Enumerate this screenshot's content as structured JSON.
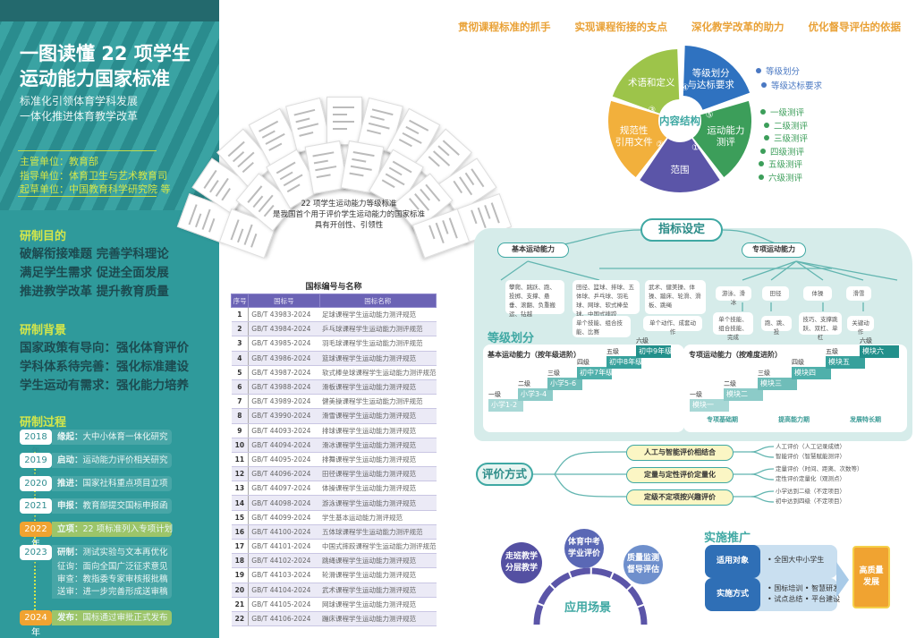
{
  "left_panel": {
    "title_lines": [
      "一图读懂 22 项学生",
      "运动能力国家标准"
    ],
    "subtitle_lines": [
      "标准化引领体育学科发展",
      "一体化推进体育教学改革"
    ],
    "organizations": [
      "主管单位：教育部",
      "指导单位：体育卫生与艺术教育司",
      "起草单位：中国教育科学研究院 等"
    ],
    "purpose": {
      "heading": "研制目的",
      "lines": [
        "破解衔接难题  完善学科理论",
        "满足学生需求  促进全面发展",
        "推进教学改革  提升教育质量"
      ]
    },
    "background": {
      "heading": "研制背景",
      "lines": [
        "国家政策有导向：强化体育评价",
        "学科体系待完善：强化标准建设",
        "学生运动有需求：强化能力培养"
      ]
    },
    "process": {
      "heading": "研制过程",
      "timeline": [
        {
          "year": "2018 年",
          "label": "缘起：",
          "text": "大中小体育一体化研究",
          "highlight": false
        },
        {
          "year": "2019 年",
          "label": "启动：",
          "text": "运动能力评价相关研究",
          "highlight": false
        },
        {
          "year": "2020 年",
          "label": "推进：",
          "text": "国家社科重点项目立项",
          "highlight": false
        },
        {
          "year": "2021 年",
          "label": "申报：",
          "text": "教育部提交国标申报函",
          "highlight": false
        },
        {
          "year": "2022 年",
          "label": "立项：",
          "text": "22 项标准列入专项计划",
          "highlight": true
        },
        {
          "year": "2023 年",
          "label": "研制：",
          "text": "测试实验与文本再优化",
          "highlight": false,
          "more": [
            "征询：面向全国广泛征求意见",
            "审查：教指委专家审核报批稿",
            "送审：进一步完善形成送审稿"
          ]
        },
        {
          "year": "2024 年",
          "label": "发布：",
          "text": "国标通过审批正式发布",
          "highlight": true
        }
      ]
    }
  },
  "middle": {
    "caption_lines": [
      "22 项学生运动能力等级标准",
      "是我国首个用于评价学生运动能力的国家标准",
      "具有开创性、引领性"
    ],
    "table": {
      "title": "国标编号与名称",
      "columns": [
        "序号",
        "国标号",
        "国标名称"
      ],
      "rows": [
        [
          "1",
          "GB/T 43983-2024",
          "足球课程学生运动能力测评规范"
        ],
        [
          "2",
          "GB/T 43984-2024",
          "乒乓球课程学生运动能力测评规范"
        ],
        [
          "3",
          "GB/T 43985-2024",
          "羽毛球课程学生运动能力测评规范"
        ],
        [
          "4",
          "GB/T 43986-2024",
          "篮球课程学生运动能力测评规范"
        ],
        [
          "5",
          "GB/T 43987-2024",
          "软式棒垒球课程学生运动能力测评规范"
        ],
        [
          "6",
          "GB/T 43988-2024",
          "滑板课程学生运动能力测评规范"
        ],
        [
          "7",
          "GB/T 43989-2024",
          "健美操课程学生运动能力测评规范"
        ],
        [
          "8",
          "GB/T 43990-2024",
          "滑雪课程学生运动能力测评规范"
        ],
        [
          "9",
          "GB/T 44093-2024",
          "排球课程学生运动能力测评规范"
        ],
        [
          "10",
          "GB/T 44094-2024",
          "滑冰课程学生运动能力测评规范"
        ],
        [
          "11",
          "GB/T 44095-2024",
          "排舞课程学生运动能力测评规范"
        ],
        [
          "12",
          "GB/T 44096-2024",
          "田径课程学生运动能力测评规范"
        ],
        [
          "13",
          "GB/T 44097-2024",
          "体操课程学生运动能力测评规范"
        ],
        [
          "14",
          "GB/T 44098-2024",
          "游泳课程学生运动能力测评规范"
        ],
        [
          "15",
          "GB/T 44099-2024",
          "学生基本运动能力测评规范"
        ],
        [
          "16",
          "GB/T 44100-2024",
          "五体球课程学生运动能力测评规范"
        ],
        [
          "17",
          "GB/T 44101-2024",
          "中国式摔跤课程学生运动能力测评规范"
        ],
        [
          "18",
          "GB/T 44102-2024",
          "跳绳课程学生运动能力测评规范"
        ],
        [
          "19",
          "GB/T 44103-2024",
          "轮滑课程学生运动能力测评规范"
        ],
        [
          "20",
          "GB/T 44104-2024",
          "武术课程学生运动能力测评规范"
        ],
        [
          "21",
          "GB/T 44105-2024",
          "网球课程学生运动能力测评规范"
        ],
        [
          "22",
          "GB/T 44106-2024",
          "蹦床课程学生运动能力测评规范"
        ]
      ]
    }
  },
  "purposes": [
    "贯彻课程标准的抓手",
    "实现课程衔接的支点",
    "深化教学改革的助力",
    "优化督导评估的依据"
  ],
  "content_structure": {
    "center": "内容结构",
    "segments": [
      {
        "num": "①",
        "label": "范围",
        "color": "#5b55a8"
      },
      {
        "num": "②",
        "label": "规范性\n引用文件",
        "color": "#f2b03c"
      },
      {
        "num": "③",
        "label": "术语和定义",
        "color": "#9dc44a"
      },
      {
        "num": "④",
        "label": "等级划分\n与达标要求",
        "color": "#2f72c0"
      },
      {
        "num": "⑤",
        "label": "运动能力\n测评",
        "color": "#3c9e5a"
      }
    ],
    "grading_items": [
      "等级划分",
      "等级达标要求"
    ],
    "test_items": [
      "一级测评",
      "二级测评",
      "三级测评",
      "四级测评",
      "五级测评",
      "六级测评"
    ]
  },
  "indicators": {
    "title": "指标设定",
    "basic": {
      "label": "基本运动能力",
      "boxes": [
        "攀爬、跳跃、跑、投掷、支撑、悬垂、滚翻、负重搬运、钻越",
        "田径、篮球、排球、五体球、乒乓球、羽毛球、网球、软式棒垒球、中国式摔跤",
        "武术、健美操、体操、蹦床、轮滑、滑板、跳绳"
      ],
      "sub_boxes": [
        "单个技能、组合技能、比赛",
        "单个动作、成套动作"
      ]
    },
    "special": {
      "label": "专项运动能力",
      "boxes": [
        "游泳、滑冰",
        "田径",
        "体操",
        "滑雪"
      ],
      "sub_boxes": [
        "单个技能、组合技能、完成",
        "跑、跳、投",
        "技巧、支撑跳跃、双杠、单杠",
        "关键动作"
      ]
    }
  },
  "grading": {
    "title": "等级划分",
    "basic": {
      "title": "基本运动能力（按年级进阶）",
      "levels": [
        "一级",
        "二级",
        "三级",
        "四级",
        "五级",
        "六级"
      ],
      "steps": [
        "小学1-2",
        "小学3-4",
        "小学5-6",
        "初中7年级",
        "初中8年级",
        "初中9年级"
      ]
    },
    "special": {
      "title": "专项运动能力（按难度进阶）",
      "levels": [
        "一级",
        "二级",
        "三级",
        "四级",
        "五级",
        "六级"
      ],
      "steps": [
        "模块一",
        "模块二",
        "模块三",
        "模块四",
        "模块五",
        "模块六"
      ],
      "stages": [
        "专项基础期",
        "提高能力期",
        "发展特长期"
      ]
    }
  },
  "evaluation": {
    "title": "评价方式",
    "methods": [
      {
        "label": "人工与智能评价相结合",
        "details": [
          "人工评价（人工记录成绩）",
          "智能评价（智慧赋能测评）"
        ]
      },
      {
        "label": "定量与定性评价定量化",
        "details": [
          "定量评价（时间、距离、次数等）",
          "定性评价定量化（观测点）"
        ]
      },
      {
        "label": "定级不定项按兴趣评价",
        "details": [
          "小学达到二级（不定项目）",
          "初中达到四级（不定项目）"
        ]
      }
    ]
  },
  "scenarios": {
    "title": "应用场景",
    "items": [
      "走班教学\n分层教学",
      "体育中考\n学业评价",
      "质量监测\n督导评估"
    ]
  },
  "promotion": {
    "title": "实施推广",
    "rows": [
      {
        "label": "适用对象",
        "items": [
          "• 全国大中小学生"
        ]
      },
      {
        "label": "实施方式",
        "items": [
          "• 国标培训  • 智慧研发",
          "• 试点总结  • 平台建设"
        ]
      }
    ],
    "result": "高质量\n发展"
  },
  "colors": {
    "panel": "#2f9a9b",
    "accent_yellow": "#d4e64a",
    "orange": "#f0a331",
    "table_header": "#6b63b5",
    "teal": "#3fa8a3"
  }
}
